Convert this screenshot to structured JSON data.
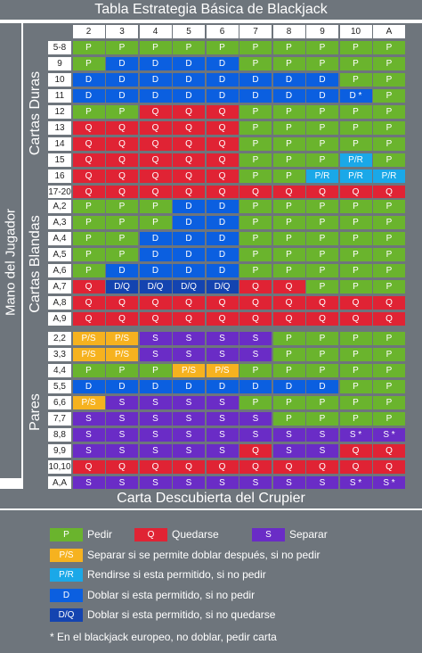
{
  "title": "Tabla Estrategia Básica de Blackjack",
  "side_label": "Mano del Jugador",
  "dealer_label": "Carta Descubierta del Crupier",
  "header": [
    "2",
    "3",
    "4",
    "5",
    "6",
    "7",
    "8",
    "9",
    "10",
    "A"
  ],
  "sections": [
    {
      "label": "Cartas Duras",
      "rows": [
        {
          "label": "5-8",
          "cells": [
            "P",
            "P",
            "P",
            "P",
            "P",
            "P",
            "P",
            "P",
            "P",
            "P"
          ]
        },
        {
          "label": "9",
          "cells": [
            "P",
            "D",
            "D",
            "D",
            "D",
            "P",
            "P",
            "P",
            "P",
            "P"
          ]
        },
        {
          "label": "10",
          "cells": [
            "D",
            "D",
            "D",
            "D",
            "D",
            "D",
            "D",
            "D",
            "P",
            "P"
          ]
        },
        {
          "label": "11",
          "cells": [
            "D",
            "D",
            "D",
            "D",
            "D",
            "D",
            "D",
            "D",
            "D *",
            "P"
          ]
        },
        {
          "label": "12",
          "cells": [
            "P",
            "P",
            "Q",
            "Q",
            "Q",
            "P",
            "P",
            "P",
            "P",
            "P"
          ]
        },
        {
          "label": "13",
          "cells": [
            "Q",
            "Q",
            "Q",
            "Q",
            "Q",
            "P",
            "P",
            "P",
            "P",
            "P"
          ]
        },
        {
          "label": "14",
          "cells": [
            "Q",
            "Q",
            "Q",
            "Q",
            "Q",
            "P",
            "P",
            "P",
            "P",
            "P"
          ]
        },
        {
          "label": "15",
          "cells": [
            "Q",
            "Q",
            "Q",
            "Q",
            "Q",
            "P",
            "P",
            "P",
            "P/R",
            "P"
          ]
        },
        {
          "label": "16",
          "cells": [
            "Q",
            "Q",
            "Q",
            "Q",
            "Q",
            "P",
            "P",
            "P/R",
            "P/R",
            "P/R"
          ]
        },
        {
          "label": "17-20",
          "cells": [
            "Q",
            "Q",
            "Q",
            "Q",
            "Q",
            "Q",
            "Q",
            "Q",
            "Q",
            "Q"
          ]
        }
      ]
    },
    {
      "label": "Cartas Blandas",
      "rows": [
        {
          "label": "A,2",
          "cells": [
            "P",
            "P",
            "P",
            "D",
            "D",
            "P",
            "P",
            "P",
            "P",
            "P"
          ]
        },
        {
          "label": "A,3",
          "cells": [
            "P",
            "P",
            "P",
            "D",
            "D",
            "P",
            "P",
            "P",
            "P",
            "P"
          ]
        },
        {
          "label": "A,4",
          "cells": [
            "P",
            "P",
            "D",
            "D",
            "D",
            "P",
            "P",
            "P",
            "P",
            "P"
          ]
        },
        {
          "label": "A,5",
          "cells": [
            "P",
            "P",
            "D",
            "D",
            "D",
            "P",
            "P",
            "P",
            "P",
            "P"
          ]
        },
        {
          "label": "A,6",
          "cells": [
            "P",
            "D",
            "D",
            "D",
            "D",
            "P",
            "P",
            "P",
            "P",
            "P"
          ]
        },
        {
          "label": "A,7",
          "cells": [
            "Q",
            "D/Q",
            "D/Q",
            "D/Q",
            "D/Q",
            "Q",
            "Q",
            "P",
            "P",
            "P"
          ]
        },
        {
          "label": "A,8",
          "cells": [
            "Q",
            "Q",
            "Q",
            "Q",
            "Q",
            "Q",
            "Q",
            "Q",
            "Q",
            "Q"
          ]
        },
        {
          "label": "A,9",
          "cells": [
            "Q",
            "Q",
            "Q",
            "Q",
            "Q",
            "Q",
            "Q",
            "Q",
            "Q",
            "Q"
          ]
        }
      ]
    },
    {
      "label": "Pares",
      "rows": [
        {
          "label": "2,2",
          "cells": [
            "P/S",
            "P/S",
            "S",
            "S",
            "S",
            "S",
            "P",
            "P",
            "P",
            "P"
          ]
        },
        {
          "label": "3,3",
          "cells": [
            "P/S",
            "P/S",
            "S",
            "S",
            "S",
            "S",
            "P",
            "P",
            "P",
            "P"
          ]
        },
        {
          "label": "4,4",
          "cells": [
            "P",
            "P",
            "P",
            "P/S",
            "P/S",
            "P",
            "P",
            "P",
            "P",
            "P"
          ]
        },
        {
          "label": "5,5",
          "cells": [
            "D",
            "D",
            "D",
            "D",
            "D",
            "D",
            "D",
            "D",
            "P",
            "P"
          ]
        },
        {
          "label": "6,6",
          "cells": [
            "P/S",
            "S",
            "S",
            "S",
            "S",
            "P",
            "P",
            "P",
            "P",
            "P"
          ]
        },
        {
          "label": "7,7",
          "cells": [
            "S",
            "S",
            "S",
            "S",
            "S",
            "S",
            "P",
            "P",
            "P",
            "P"
          ]
        },
        {
          "label": "8,8",
          "cells": [
            "S",
            "S",
            "S",
            "S",
            "S",
            "S",
            "S",
            "S",
            "S *",
            "S *"
          ]
        },
        {
          "label": "9,9",
          "cells": [
            "S",
            "S",
            "S",
            "S",
            "S",
            "Q",
            "S",
            "S",
            "Q",
            "Q"
          ]
        },
        {
          "label": "10,10",
          "cells": [
            "Q",
            "Q",
            "Q",
            "Q",
            "Q",
            "Q",
            "Q",
            "Q",
            "Q",
            "Q"
          ]
        },
        {
          "label": "A,A",
          "cells": [
            "S",
            "S",
            "S",
            "S",
            "S",
            "S",
            "S",
            "S",
            "S *",
            "S *"
          ]
        }
      ]
    }
  ],
  "legend": [
    {
      "code": "P",
      "text": "Pedir"
    },
    {
      "code": "Q",
      "text": "Quedarse"
    },
    {
      "code": "S",
      "text": "Separar"
    },
    {
      "code": "P/S",
      "text": "Separar si se permite doblar después, si no pedir"
    },
    {
      "code": "P/R",
      "text": "Rendirse si esta permitido, si no pedir"
    },
    {
      "code": "D",
      "text": "Doblar si esta permitido, si no pedir"
    },
    {
      "code": "D/Q",
      "text": "Doblar si esta permitido, si no quedarse"
    }
  ],
  "note": "* En el blackjack europeo, no doblar, pedir carta",
  "colors": {
    "P": "#6ab42d",
    "Q": "#e02334",
    "S": "#6a2cc6",
    "D": "#0b5fe0",
    "P/S": "#f6b21f",
    "P/R": "#1aa8e8",
    "D/Q": "#1444b0",
    "panel": "#6e757c"
  }
}
